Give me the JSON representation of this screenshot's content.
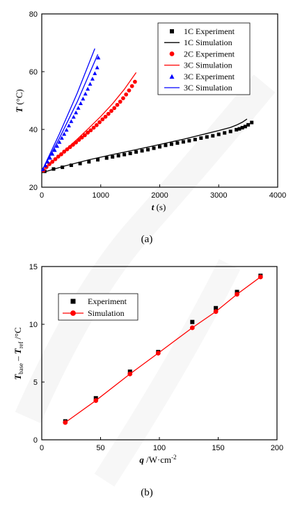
{
  "chart_data": [
    {
      "type": "scatter",
      "caption": "(a)",
      "xlabel_italic": "t",
      "xlabel_unit": " (s)",
      "ylabel_italic": "T",
      "ylabel_unit": " (°C)",
      "xlim": [
        0,
        4000
      ],
      "ylim": [
        20,
        80
      ],
      "xticks": [
        0,
        1000,
        2000,
        3000,
        4000
      ],
      "yticks": [
        20,
        40,
        60,
        80
      ],
      "legend_position": "top-right",
      "series": [
        {
          "name": "1C Experiment",
          "kind": "points",
          "marker": "square",
          "color": "#000000",
          "x": [
            50,
            200,
            350,
            500,
            650,
            800,
            950,
            1100,
            1200,
            1300,
            1400,
            1500,
            1600,
            1700,
            1800,
            1900,
            2000,
            2100,
            2200,
            2300,
            2400,
            2500,
            2600,
            2700,
            2800,
            2900,
            3000,
            3100,
            3200,
            3300,
            3350,
            3400,
            3450,
            3500,
            3560
          ],
          "y": [
            25.5,
            26.3,
            26.9,
            27.6,
            28.2,
            28.8,
            29.5,
            30.1,
            30.5,
            30.9,
            31.3,
            31.7,
            32.2,
            32.6,
            33.0,
            33.5,
            34.0,
            34.5,
            34.9,
            35.3,
            35.7,
            36.1,
            36.5,
            37.0,
            37.4,
            37.8,
            38.3,
            38.8,
            39.3,
            39.9,
            40.2,
            40.6,
            41.0,
            41.6,
            42.4
          ]
        },
        {
          "name": "1C Simulation",
          "kind": "line",
          "color": "#000000",
          "x": [
            0,
            400,
            800,
            1200,
            1600,
            2000,
            2400,
            2800,
            3000,
            3200,
            3300,
            3400,
            3480
          ],
          "y": [
            25.0,
            27.4,
            29.5,
            31.3,
            33.0,
            34.8,
            36.6,
            38.6,
            39.6,
            40.7,
            41.5,
            42.5,
            43.6
          ]
        },
        {
          "name": "2C Experiment",
          "kind": "points",
          "marker": "circle",
          "color": "#ff0000",
          "x": [
            30,
            80,
            130,
            180,
            230,
            280,
            330,
            380,
            430,
            480,
            530,
            580,
            630,
            680,
            730,
            780,
            830,
            880,
            930,
            980,
            1030,
            1080,
            1130,
            1180,
            1230,
            1280,
            1330,
            1380,
            1430,
            1480,
            1530,
            1580
          ],
          "y": [
            25.8,
            27.0,
            28.0,
            28.8,
            29.7,
            30.6,
            31.4,
            32.3,
            33.1,
            33.9,
            34.7,
            35.5,
            36.4,
            37.2,
            38.0,
            38.9,
            39.7,
            40.6,
            41.5,
            42.5,
            43.5,
            44.4,
            45.4,
            46.4,
            47.4,
            48.5,
            49.6,
            50.8,
            52.1,
            53.5,
            55.0,
            56.5
          ]
        },
        {
          "name": "3C Simulation",
          "kind": "line",
          "color": "#ff0000",
          "x": [
            0,
            200,
            400,
            600,
            800,
            1000,
            1200,
            1400,
            1600
          ],
          "y": [
            25.5,
            29.2,
            32.9,
            36.6,
            40.5,
            44.5,
            48.9,
            53.9,
            59.7
          ]
        },
        {
          "name": "3C Experiment",
          "kind": "points",
          "marker": "triangle",
          "color": "#0000ff",
          "x": [
            20,
            60,
            100,
            140,
            180,
            220,
            260,
            300,
            340,
            380,
            420,
            460,
            500,
            540,
            580,
            620,
            660,
            700,
            740,
            780,
            820,
            860,
            900,
            940,
            960
          ],
          "y": [
            26.3,
            27.6,
            28.9,
            30.2,
            31.6,
            32.9,
            34.3,
            35.7,
            37.1,
            38.5,
            39.9,
            41.4,
            42.9,
            44.4,
            45.9,
            47.5,
            49.1,
            50.7,
            52.4,
            54.1,
            55.8,
            57.6,
            59.5,
            61.5,
            64.9
          ]
        },
        {
          "name": "3C Simulation",
          "kind": "line",
          "color": "#0000ff",
          "x": [
            0,
            300,
            600,
            900
          ],
          "y": [
            25.5,
            38.5,
            52.5,
            68.0
          ]
        },
        {
          "name": "",
          "kind": "line",
          "color": "#0000ff",
          "x": [
            0,
            300,
            600,
            950
          ],
          "y": [
            25.5,
            37.0,
            49.5,
            66.0
          ]
        }
      ]
    },
    {
      "type": "scatter",
      "caption": "(b)",
      "xlabel_italic": "q",
      "xlabel_unit": " /W·cm",
      "xlabel_sup": "-2",
      "ylabel_T1": "T",
      "ylabel_sub1": "base",
      "ylabel_dash": " – ",
      "ylabel_T2": "T",
      "ylabel_sub2": "ref",
      "ylabel_unit": " /°C",
      "xlim": [
        0,
        200
      ],
      "ylim": [
        0,
        15
      ],
      "xticks": [
        0,
        50,
        100,
        150,
        200
      ],
      "yticks": [
        0,
        5,
        10,
        15
      ],
      "legend_position": "top-left",
      "series": [
        {
          "name": "Experiment",
          "kind": "points",
          "marker": "square",
          "color": "#000000",
          "x": [
            20,
            46,
            75,
            99,
            128,
            148,
            166,
            186
          ],
          "y": [
            1.6,
            3.6,
            5.9,
            7.6,
            10.2,
            11.4,
            12.8,
            14.2
          ]
        },
        {
          "name": "Simulation",
          "kind": "linepoints",
          "marker": "circle",
          "color": "#ff0000",
          "x": [
            20,
            46,
            75,
            99,
            128,
            148,
            166,
            186
          ],
          "y": [
            1.5,
            3.4,
            5.7,
            7.5,
            9.7,
            11.1,
            12.6,
            14.1
          ]
        }
      ]
    }
  ]
}
